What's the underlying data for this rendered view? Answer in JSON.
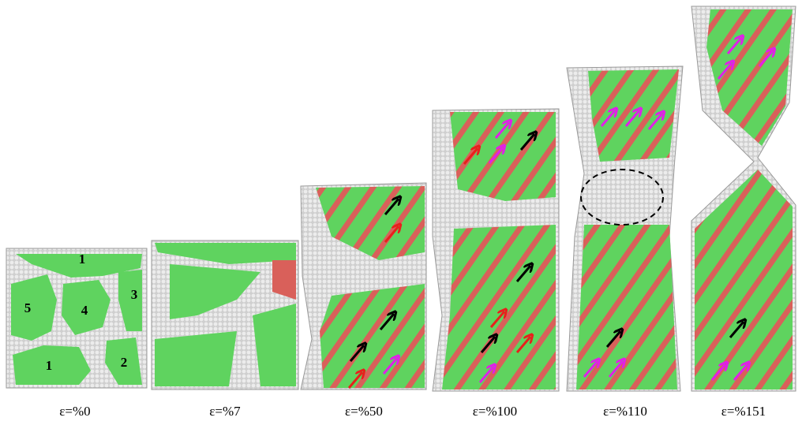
{
  "panels": [
    {
      "caption": "ε=%0",
      "grain_labels": [
        "1",
        "5",
        "4",
        "3",
        "1",
        "2"
      ]
    },
    {
      "caption": "ε=%7"
    },
    {
      "caption": "ε=%50"
    },
    {
      "caption": "ε=%100"
    },
    {
      "caption": "ε=%110"
    },
    {
      "caption": "ε=%151"
    }
  ]
}
